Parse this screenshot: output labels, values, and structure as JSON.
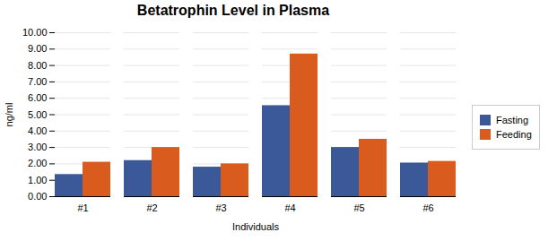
{
  "chart_data": {
    "type": "bar",
    "title": "Betatrophin Level in Plasma",
    "xlabel": "Individuals",
    "ylabel": "ng/ml",
    "categories": [
      "#1",
      "#2",
      "#3",
      "#4",
      "#5",
      "#6"
    ],
    "series": [
      {
        "name": "Fasting",
        "color": "#3B5998",
        "values": [
          1.35,
          2.2,
          1.8,
          5.55,
          3.0,
          2.05
        ]
      },
      {
        "name": "Feeding",
        "color": "#D95B1E",
        "values": [
          2.1,
          3.0,
          2.0,
          8.7,
          3.5,
          2.15
        ]
      }
    ],
    "ylim": [
      0,
      10.0
    ],
    "yticks": [
      {
        "value": 0.0,
        "label": "0.00"
      },
      {
        "value": 1.0,
        "label": "1.00"
      },
      {
        "value": 2.0,
        "label": "2.00"
      },
      {
        "value": 3.0,
        "label": "3.00"
      },
      {
        "value": 4.0,
        "label": "4.00"
      },
      {
        "value": 5.0,
        "label": "5.00"
      },
      {
        "value": 6.0,
        "label": "6.00"
      },
      {
        "value": 7.0,
        "label": "7.00"
      },
      {
        "value": 8.0,
        "label": "8.00"
      },
      {
        "value": 9.0,
        "label": "9.00"
      },
      {
        "value": 10.0,
        "label": "10.00"
      }
    ],
    "grid": true,
    "legend": "right"
  }
}
